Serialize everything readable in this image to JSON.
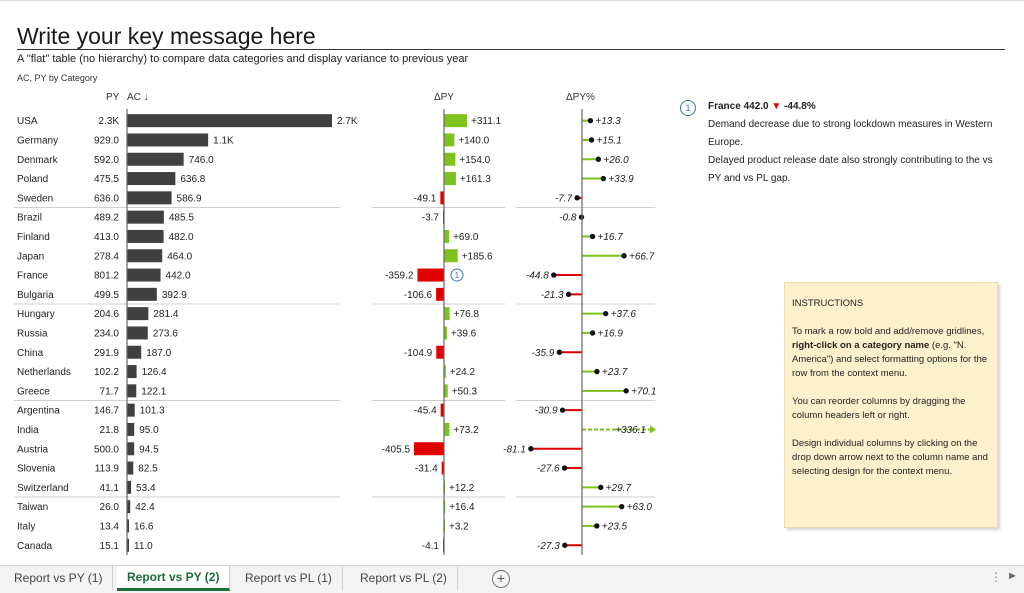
{
  "title": "Write your key message here",
  "subtitle": "A \"flat\" table (no hierarchy) to compare data categories and display variance to previous year",
  "caption": "AC, PY by Category",
  "headers": {
    "py": "PY",
    "ac": "AC ↓",
    "dpy": "ΔPY",
    "dpypct": "ΔPY%"
  },
  "colors": {
    "ac_bar": "#404040",
    "positive": "#7dc31c",
    "negative": "#e00000",
    "axis": "#666666",
    "comment_marker": "#2e75b6"
  },
  "rows": [
    {
      "category": "USA",
      "py": "2.3K",
      "ac": "2.7K",
      "ac_value": 2700,
      "dpy": "+311.1",
      "dpy_value": 311.1,
      "dpypct": "+13.3",
      "dpypct_value": 13.3
    },
    {
      "category": "Germany",
      "py": "929.0",
      "ac": "1.1K",
      "ac_value": 1069,
      "dpy": "+140.0",
      "dpy_value": 140.0,
      "dpypct": "+15.1",
      "dpypct_value": 15.1
    },
    {
      "category": "Denmark",
      "py": "592.0",
      "ac": "746.0",
      "ac_value": 746.0,
      "dpy": "+154.0",
      "dpy_value": 154.0,
      "dpypct": "+26.0",
      "dpypct_value": 26.0
    },
    {
      "category": "Poland",
      "py": "475.5",
      "ac": "636.8",
      "ac_value": 636.8,
      "dpy": "+161.3",
      "dpy_value": 161.3,
      "dpypct": "+33.9",
      "dpypct_value": 33.9
    },
    {
      "category": "Sweden",
      "py": "636.0",
      "ac": "586.9",
      "ac_value": 586.9,
      "dpy": "-49.1",
      "dpy_value": -49.1,
      "dpypct": "-7.7",
      "dpypct_value": -7.7
    },
    {
      "category": "Brazil",
      "py": "489.2",
      "ac": "485.5",
      "ac_value": 485.5,
      "dpy": "-3.7",
      "dpy_value": -3.7,
      "dpypct": "-0.8",
      "dpypct_value": -0.8
    },
    {
      "category": "Finland",
      "py": "413.0",
      "ac": "482.0",
      "ac_value": 482.0,
      "dpy": "+69.0",
      "dpy_value": 69.0,
      "dpypct": "+16.7",
      "dpypct_value": 16.7
    },
    {
      "category": "Japan",
      "py": "278.4",
      "ac": "464.0",
      "ac_value": 464.0,
      "dpy": "+185.6",
      "dpy_value": 185.6,
      "dpypct": "+66.7",
      "dpypct_value": 66.7
    },
    {
      "category": "France",
      "py": "801.2",
      "ac": "442.0",
      "ac_value": 442.0,
      "dpy": "-359.2",
      "dpy_value": -359.2,
      "dpypct": "-44.8",
      "dpypct_value": -44.8,
      "marker": "1"
    },
    {
      "category": "Bulgaria",
      "py": "499.5",
      "ac": "392.9",
      "ac_value": 392.9,
      "dpy": "-106.6",
      "dpy_value": -106.6,
      "dpypct": "-21.3",
      "dpypct_value": -21.3
    },
    {
      "category": "Hungary",
      "py": "204.6",
      "ac": "281.4",
      "ac_value": 281.4,
      "dpy": "+76.8",
      "dpy_value": 76.8,
      "dpypct": "+37.6",
      "dpypct_value": 37.6
    },
    {
      "category": "Russia",
      "py": "234.0",
      "ac": "273.6",
      "ac_value": 273.6,
      "dpy": "+39.6",
      "dpy_value": 39.6,
      "dpypct": "+16.9",
      "dpypct_value": 16.9
    },
    {
      "category": "China",
      "py": "291.9",
      "ac": "187.0",
      "ac_value": 187.0,
      "dpy": "-104.9",
      "dpy_value": -104.9,
      "dpypct": "-35.9",
      "dpypct_value": -35.9
    },
    {
      "category": "Netherlands",
      "py": "102.2",
      "ac": "126.4",
      "ac_value": 126.4,
      "dpy": "+24.2",
      "dpy_value": 24.2,
      "dpypct": "+23.7",
      "dpypct_value": 23.7
    },
    {
      "category": "Greece",
      "py": "71.7",
      "ac": "122.1",
      "ac_value": 122.1,
      "dpy": "+50.3",
      "dpy_value": 50.3,
      "dpypct": "+70.1",
      "dpypct_value": 70.1
    },
    {
      "category": "Argentina",
      "py": "146.7",
      "ac": "101.3",
      "ac_value": 101.3,
      "dpy": "-45.4",
      "dpy_value": -45.4,
      "dpypct": "-30.9",
      "dpypct_value": -30.9
    },
    {
      "category": "India",
      "py": "21.8",
      "ac": "95.0",
      "ac_value": 95.0,
      "dpy": "+73.2",
      "dpy_value": 73.2,
      "dpypct": "+336.1",
      "dpypct_value": 336.1,
      "outlier": true
    },
    {
      "category": "Austria",
      "py": "500.0",
      "ac": "94.5",
      "ac_value": 94.5,
      "dpy": "-405.5",
      "dpy_value": -405.5,
      "dpypct": "-81.1",
      "dpypct_value": -81.1,
      "outlier": true
    },
    {
      "category": "Slovenia",
      "py": "113.9",
      "ac": "82.5",
      "ac_value": 82.5,
      "dpy": "-31.4",
      "dpy_value": -31.4,
      "dpypct": "-27.6",
      "dpypct_value": -27.6
    },
    {
      "category": "Switzerland",
      "py": "41.1",
      "ac": "53.4",
      "ac_value": 53.4,
      "dpy": "+12.2",
      "dpy_value": 12.2,
      "dpypct": "+29.7",
      "dpypct_value": 29.7
    },
    {
      "category": "Taiwan",
      "py": "26.0",
      "ac": "42.4",
      "ac_value": 42.4,
      "dpy": "+16.4",
      "dpy_value": 16.4,
      "dpypct": "+63.0",
      "dpypct_value": 63.0
    },
    {
      "category": "Italy",
      "py": "13.4",
      "ac": "16.6",
      "ac_value": 16.6,
      "dpy": "+3.2",
      "dpy_value": 3.2,
      "dpypct": "+23.5",
      "dpypct_value": 23.5
    },
    {
      "category": "Canada",
      "py": "15.1",
      "ac": "11.0",
      "ac_value": 11.0,
      "dpy": "-4.1",
      "dpy_value": -4.1,
      "dpypct": "-27.3",
      "dpypct_value": -27.3
    }
  ],
  "gridline_after": [
    "Sweden",
    "Bulgaria",
    "Greece",
    "Switzerland"
  ],
  "comment": {
    "marker": "1",
    "head_text": "France 442.0",
    "head_arrow": "▼",
    "head_pct": "-44.8%",
    "lines": [
      "Demand decrease due to strong lockdown measures in Western Europe.",
      "Delayed product release date also strongly contributing to the vs PY and vs PL gap."
    ]
  },
  "instructions": {
    "heading": "INSTRUCTIONS",
    "p1_a": "To mark a row bold and add/remove gridlines, ",
    "p1_b": "right-click on a category name",
    "p1_c": " (e.g. \"N. America\") and select formatting options for the row from the context menu.",
    "p2": "You can reorder columns by dragging the column headers left or right.",
    "p3": "Design individual columns by clicking on the drop down arrow next to the column name and selecting design for the context menu."
  },
  "tabs": [
    {
      "label": "Report vs PY (1)",
      "active": false
    },
    {
      "label": "Report vs PY (2)",
      "active": true
    },
    {
      "label": "Report vs PL (1)",
      "active": false
    },
    {
      "label": "Report vs PL (2)",
      "active": false
    }
  ],
  "tabbar": {
    "add": "+",
    "more": "⋮",
    "scroll": "►"
  }
}
